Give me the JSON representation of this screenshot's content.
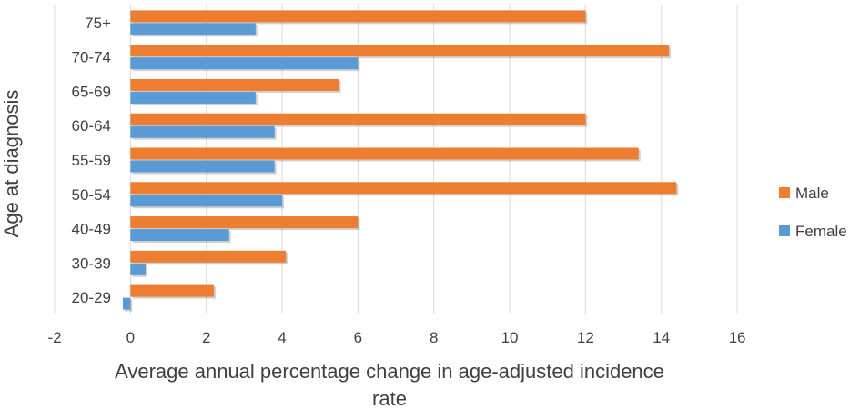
{
  "chart_data": {
    "type": "bar",
    "orientation": "horizontal",
    "title": "",
    "categories": [
      "20-29",
      "30-39",
      "40-49",
      "50-54",
      "55-59",
      "60-64",
      "65-69",
      "70-74",
      "75+"
    ],
    "series": [
      {
        "name": "Male",
        "color": "#ED7D31",
        "values": [
          2.2,
          4.1,
          6.0,
          14.4,
          13.4,
          12.0,
          5.5,
          14.2,
          12.0
        ]
      },
      {
        "name": "Female",
        "color": "#5B9BD5",
        "values": [
          -0.2,
          0.4,
          2.6,
          4.0,
          3.8,
          3.8,
          3.3,
          6.0,
          3.3
        ]
      }
    ],
    "xlabel_line1": "Average annual percentage change in age-adjusted incidence",
    "xlabel_line2": "rate",
    "ylabel": "Age at diagnosis",
    "xlim": [
      -2,
      16
    ],
    "xticks": [
      -2,
      0,
      2,
      4,
      6,
      8,
      10,
      12,
      14,
      16
    ],
    "grid": true,
    "legend": "right",
    "legend_order": [
      "Male",
      "Female"
    ]
  }
}
